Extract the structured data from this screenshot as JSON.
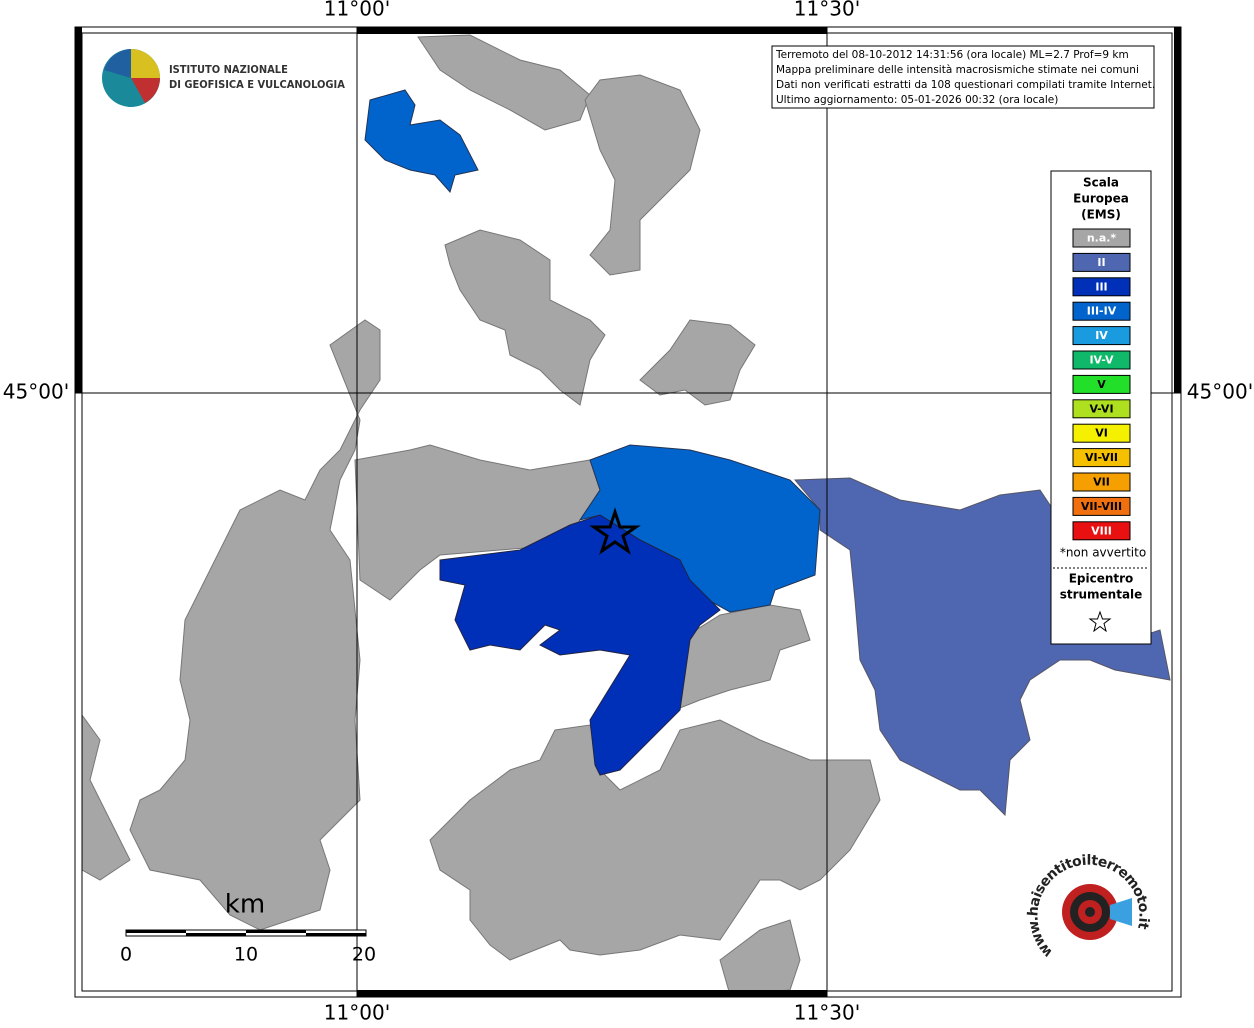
{
  "map": {
    "axis_labels": {
      "top": [
        "11°00'",
        "11°30'"
      ],
      "bottom": [
        "11°00'",
        "11°30'"
      ],
      "left": "45°00'",
      "right": "45°00'"
    },
    "logo": [
      "ISTITUTO NAZIONALE",
      "DI GEOFISICA E VULCANOLOGIA"
    ],
    "info_box": [
      "Terremoto del 08-10-2012 14:31:56 (ora locale) ML=2.7 Prof=9 km",
      "Mappa preliminare delle intensità macrosismiche stimate nei comuni",
      "Dati non verificati estratti da 108 questionari compilati tramite Internet.",
      "Ultimo aggiornamento: 05-01-2026 00:32 (ora locale)"
    ],
    "legend": {
      "title": [
        "Scala",
        "Europea",
        "(EMS)"
      ],
      "items": [
        {
          "label": "n.a.*",
          "color": "#a6a6a6"
        },
        {
          "label": "II",
          "color": "#4f67b0"
        },
        {
          "label": "III",
          "color": "#0030b8"
        },
        {
          "label": "III-IV",
          "color": "#0064cc"
        },
        {
          "label": "IV",
          "color": "#1a9be0"
        },
        {
          "label": "IV-V",
          "color": "#10b86a"
        },
        {
          "label": "V",
          "color": "#22e02a"
        },
        {
          "label": "V-VI",
          "color": "#aee020"
        },
        {
          "label": "VI",
          "color": "#f5f000"
        },
        {
          "label": "VI-VII",
          "color": "#f5c000"
        },
        {
          "label": "VII",
          "color": "#f5a000"
        },
        {
          "label": "VII-VIII",
          "color": "#f07010"
        },
        {
          "label": "VIII",
          "color": "#e81010"
        }
      ],
      "note": "*non avvertito",
      "epicenter": [
        "Epicentro",
        "strumentale"
      ]
    },
    "scale_bar": {
      "unit": "km",
      "ticks": [
        "0",
        "10",
        "20"
      ]
    },
    "site_logo": "www.haisentitoilterremoto.it"
  }
}
